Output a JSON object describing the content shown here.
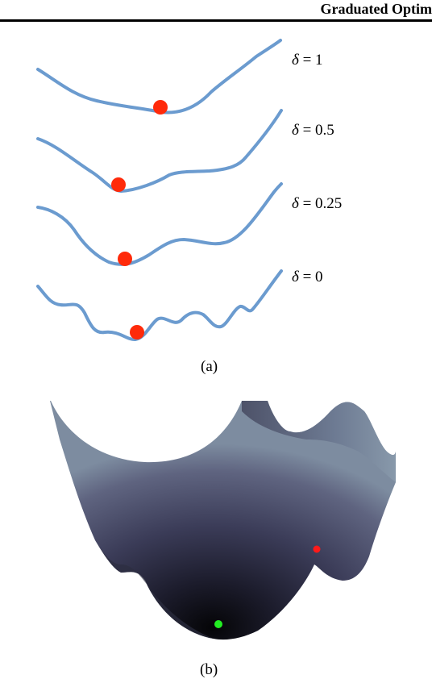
{
  "header": {
    "running_title": "Graduated Optim"
  },
  "figure_a": {
    "caption": "(a)",
    "curves": [
      {
        "label_symbol": "δ",
        "label_rest": " = 1"
      },
      {
        "label_symbol": "δ",
        "label_rest": " = 0.5"
      },
      {
        "label_symbol": "δ",
        "label_rest": " = 0.25"
      },
      {
        "label_symbol": "δ",
        "label_rest": " = 0"
      }
    ],
    "colors": {
      "curve": "#6b9bcf",
      "minimum": "#ff2a0a"
    }
  },
  "figure_b": {
    "caption": "(b)",
    "colors": {
      "local_minimum": "#ff1a1a",
      "global_minimum": "#22ee22"
    }
  }
}
